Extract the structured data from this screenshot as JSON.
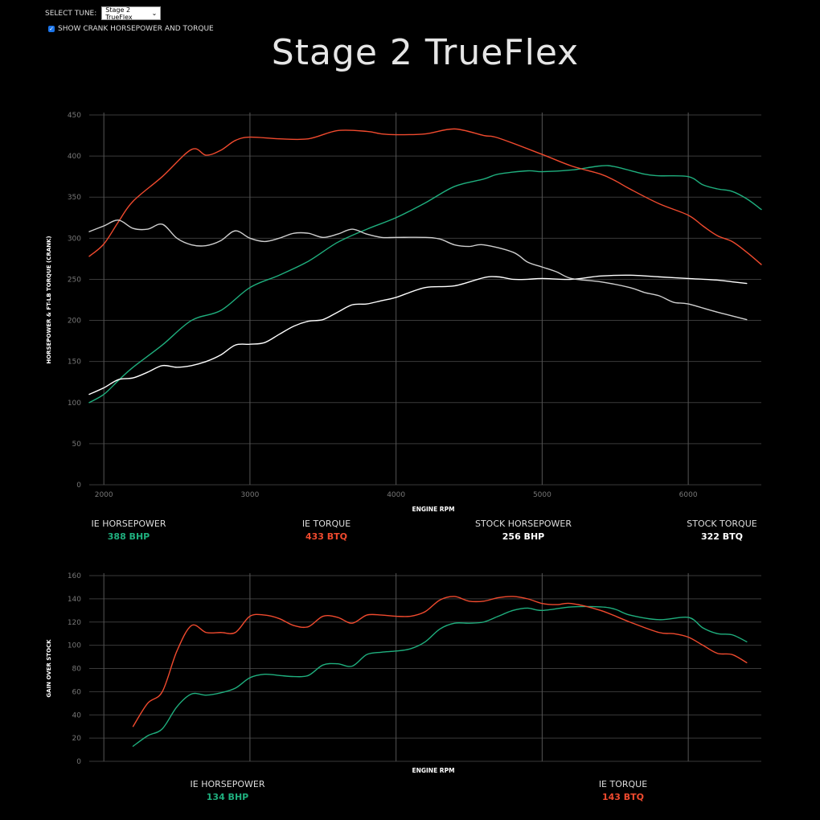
{
  "controls": {
    "select_label": "SELECT TUNE:",
    "selected_tune": "Stage 2 TrueFlex",
    "checkbox_label": "SHOW CRANK HORSEPOWER AND TORQUE",
    "checkbox_checked": true
  },
  "title": "Stage 2 TrueFlex",
  "colors": {
    "ie_hp": "#1faf7e",
    "ie_tq": "#f04a2e",
    "stock_hp": "#ffffff",
    "stock_tq": "#cfcfcf",
    "grid": "#3a3a3a"
  },
  "legend_top": [
    {
      "label": "IE HORSEPOWER",
      "value": "388 BHP",
      "color": "#1faf7e"
    },
    {
      "label": "IE TORQUE",
      "value": "433 BTQ",
      "color": "#f04a2e"
    },
    {
      "label": "STOCK HORSEPOWER",
      "value": "256 BHP",
      "color": "#ffffff"
    },
    {
      "label": "STOCK TORQUE",
      "value": "322 BTQ",
      "color": "#ffffff"
    }
  ],
  "legend_bottom": [
    {
      "label": "IE HORSEPOWER",
      "value": "134 BHP",
      "color": "#1faf7e"
    },
    {
      "label": "IE TORQUE",
      "value": "143 BTQ",
      "color": "#f04a2e"
    }
  ],
  "chart_data": [
    {
      "type": "line",
      "xlabel": "ENGINE RPM",
      "ylabel": "HORSEPOWER & FT-LB TORQUE (CRANK)",
      "xlim": [
        1900,
        6500
      ],
      "ylim": [
        0,
        450
      ],
      "x_ticks": [
        2000,
        3000,
        4000,
        5000,
        6000
      ],
      "y_ticks": [
        0,
        50,
        100,
        150,
        200,
        250,
        300,
        350,
        400,
        450
      ],
      "grid": true,
      "series": [
        {
          "name": "IE HORSEPOWER",
          "color": "#1faf7e",
          "points": [
            [
              1900,
              100
            ],
            [
              2000,
              110
            ],
            [
              2100,
              127
            ],
            [
              2200,
              143
            ],
            [
              2400,
              170
            ],
            [
              2600,
              200
            ],
            [
              2800,
              212
            ],
            [
              3000,
              240
            ],
            [
              3200,
              255
            ],
            [
              3400,
              272
            ],
            [
              3600,
              295
            ],
            [
              3800,
              311
            ],
            [
              4000,
              325
            ],
            [
              4200,
              343
            ],
            [
              4400,
              363
            ],
            [
              4600,
              372
            ],
            [
              4700,
              378
            ],
            [
              4900,
              382
            ],
            [
              5000,
              381
            ],
            [
              5200,
              383
            ],
            [
              5400,
              388
            ],
            [
              5500,
              387
            ],
            [
              5700,
              378
            ],
            [
              5800,
              376
            ],
            [
              6000,
              375
            ],
            [
              6100,
              365
            ],
            [
              6200,
              360
            ],
            [
              6300,
              357
            ],
            [
              6400,
              348
            ],
            [
              6500,
              335
            ]
          ]
        },
        {
          "name": "IE TORQUE",
          "color": "#f04a2e",
          "points": [
            [
              1900,
              278
            ],
            [
              2000,
              293
            ],
            [
              2100,
              320
            ],
            [
              2200,
              345
            ],
            [
              2400,
              375
            ],
            [
              2600,
              408
            ],
            [
              2700,
              401
            ],
            [
              2800,
              407
            ],
            [
              2900,
              419
            ],
            [
              3000,
              423
            ],
            [
              3200,
              421
            ],
            [
              3400,
              421
            ],
            [
              3600,
              431
            ],
            [
              3800,
              430
            ],
            [
              3900,
              427
            ],
            [
              4000,
              426
            ],
            [
              4200,
              427
            ],
            [
              4400,
              433
            ],
            [
              4600,
              425
            ],
            [
              4700,
              422
            ],
            [
              5000,
              402
            ],
            [
              5200,
              388
            ],
            [
              5400,
              378
            ],
            [
              5500,
              370
            ],
            [
              5600,
              360
            ],
            [
              5800,
              342
            ],
            [
              6000,
              328
            ],
            [
              6100,
              315
            ],
            [
              6200,
              303
            ],
            [
              6300,
              296
            ],
            [
              6400,
              283
            ],
            [
              6500,
              268
            ]
          ]
        },
        {
          "name": "STOCK HORSEPOWER",
          "color": "#ffffff",
          "points": [
            [
              1900,
              110
            ],
            [
              2000,
              118
            ],
            [
              2100,
              128
            ],
            [
              2200,
              130
            ],
            [
              2300,
              137
            ],
            [
              2400,
              145
            ],
            [
              2500,
              143
            ],
            [
              2600,
              145
            ],
            [
              2700,
              150
            ],
            [
              2800,
              158
            ],
            [
              2900,
              170
            ],
            [
              3000,
              171
            ],
            [
              3100,
              173
            ],
            [
              3200,
              183
            ],
            [
              3300,
              193
            ],
            [
              3400,
              199
            ],
            [
              3500,
              201
            ],
            [
              3600,
              210
            ],
            [
              3700,
              219
            ],
            [
              3800,
              220
            ],
            [
              3900,
              224
            ],
            [
              4000,
              228
            ],
            [
              4200,
              240
            ],
            [
              4400,
              242
            ],
            [
              4600,
              252
            ],
            [
              4700,
              253
            ],
            [
              4800,
              250
            ],
            [
              4900,
              250
            ],
            [
              5000,
              251
            ],
            [
              5200,
              250
            ],
            [
              5400,
              254
            ],
            [
              5600,
              255
            ],
            [
              5800,
              253
            ],
            [
              6000,
              251
            ],
            [
              6200,
              249
            ],
            [
              6300,
              247
            ],
            [
              6400,
              245
            ]
          ]
        },
        {
          "name": "STOCK TORQUE",
          "color": "#cfcfcf",
          "points": [
            [
              1900,
              308
            ],
            [
              2000,
              315
            ],
            [
              2100,
              322
            ],
            [
              2200,
              312
            ],
            [
              2300,
              311
            ],
            [
              2400,
              317
            ],
            [
              2500,
              300
            ],
            [
              2600,
              292
            ],
            [
              2700,
              291
            ],
            [
              2800,
              297
            ],
            [
              2900,
              309
            ],
            [
              3000,
              300
            ],
            [
              3100,
              296
            ],
            [
              3200,
              300
            ],
            [
              3300,
              306
            ],
            [
              3400,
              306
            ],
            [
              3500,
              301
            ],
            [
              3600,
              305
            ],
            [
              3700,
              311
            ],
            [
              3800,
              305
            ],
            [
              3900,
              301
            ],
            [
              4000,
              301
            ],
            [
              4200,
              301
            ],
            [
              4300,
              299
            ],
            [
              4400,
              292
            ],
            [
              4500,
              290
            ],
            [
              4600,
              292
            ],
            [
              4800,
              283
            ],
            [
              4900,
              271
            ],
            [
              5000,
              265
            ],
            [
              5100,
              259
            ],
            [
              5200,
              251
            ],
            [
              5400,
              247
            ],
            [
              5600,
              240
            ],
            [
              5700,
              234
            ],
            [
              5800,
              230
            ],
            [
              5900,
              222
            ],
            [
              6000,
              220
            ],
            [
              6200,
              210
            ],
            [
              6400,
              201
            ]
          ]
        }
      ]
    },
    {
      "type": "line",
      "xlabel": "ENGINE RPM",
      "ylabel": "GAIN OVER STOCK",
      "xlim": [
        1900,
        6500
      ],
      "ylim": [
        0,
        160
      ],
      "y_ticks": [
        0,
        20,
        40,
        60,
        80,
        100,
        120,
        140,
        160
      ],
      "grid": true,
      "series": [
        {
          "name": "IE HORSEPOWER",
          "color": "#1faf7e",
          "points": [
            [
              2200,
              13
            ],
            [
              2300,
              22
            ],
            [
              2400,
              28
            ],
            [
              2500,
              47
            ],
            [
              2600,
              58
            ],
            [
              2700,
              57
            ],
            [
              2800,
              59
            ],
            [
              2900,
              63
            ],
            [
              3000,
              72
            ],
            [
              3100,
              75
            ],
            [
              3200,
              74
            ],
            [
              3300,
              73
            ],
            [
              3400,
              74
            ],
            [
              3500,
              83
            ],
            [
              3600,
              84
            ],
            [
              3700,
              82
            ],
            [
              3800,
              92
            ],
            [
              3900,
              94
            ],
            [
              4000,
              95
            ],
            [
              4100,
              97
            ],
            [
              4200,
              103
            ],
            [
              4300,
              114
            ],
            [
              4400,
              119
            ],
            [
              4500,
              119
            ],
            [
              4600,
              120
            ],
            [
              4700,
              125
            ],
            [
              4800,
              130
            ],
            [
              4900,
              132
            ],
            [
              5000,
              130
            ],
            [
              5200,
              133
            ],
            [
              5400,
              133
            ],
            [
              5500,
              131
            ],
            [
              5600,
              126
            ],
            [
              5800,
              122
            ],
            [
              6000,
              124
            ],
            [
              6100,
              115
            ],
            [
              6200,
              110
            ],
            [
              6300,
              109
            ],
            [
              6400,
              103
            ]
          ]
        },
        {
          "name": "IE TORQUE",
          "color": "#f04a2e",
          "points": [
            [
              2200,
              30
            ],
            [
              2300,
              50
            ],
            [
              2400,
              60
            ],
            [
              2500,
              95
            ],
            [
              2600,
              117
            ],
            [
              2700,
              111
            ],
            [
              2800,
              111
            ],
            [
              2900,
              111
            ],
            [
              3000,
              125
            ],
            [
              3100,
              126
            ],
            [
              3200,
              123
            ],
            [
              3300,
              117
            ],
            [
              3400,
              116
            ],
            [
              3500,
              125
            ],
            [
              3600,
              124
            ],
            [
              3700,
              119
            ],
            [
              3800,
              126
            ],
            [
              3900,
              126
            ],
            [
              4000,
              125
            ],
            [
              4100,
              125
            ],
            [
              4200,
              129
            ],
            [
              4300,
              139
            ],
            [
              4400,
              142
            ],
            [
              4500,
              138
            ],
            [
              4600,
              138
            ],
            [
              4700,
              141
            ],
            [
              4800,
              142
            ],
            [
              4900,
              140
            ],
            [
              5000,
              136
            ],
            [
              5100,
              135
            ],
            [
              5200,
              136
            ],
            [
              5400,
              130
            ],
            [
              5600,
              120
            ],
            [
              5800,
              111
            ],
            [
              5900,
              110
            ],
            [
              6000,
              107
            ],
            [
              6100,
              100
            ],
            [
              6200,
              93
            ],
            [
              6300,
              92
            ],
            [
              6400,
              85
            ]
          ]
        }
      ]
    }
  ]
}
